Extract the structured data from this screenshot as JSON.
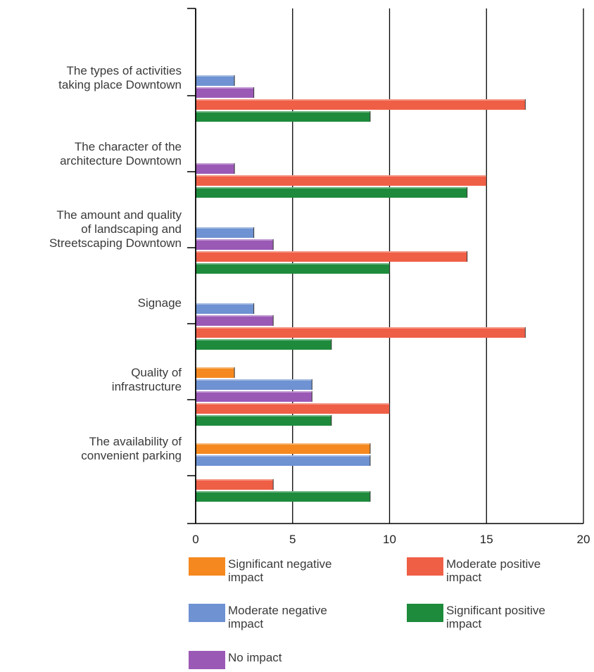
{
  "chart_data": {
    "type": "bar",
    "orientation": "horizontal",
    "title": "",
    "xlabel": "",
    "ylabel": "",
    "xlim": [
      0,
      20
    ],
    "x_ticks": [
      "0",
      "5",
      "10",
      "15",
      "20"
    ],
    "grid": "vertical lines at major ticks",
    "legend_position": "bottom",
    "categories": [
      [
        "The types of activities",
        "taking place Downtown"
      ],
      [
        "The character of the",
        "architecture Downtown"
      ],
      [
        "The amount and quality",
        "of landscaping and",
        "Streetscaping Downtown"
      ],
      [
        "Signage"
      ],
      [
        "Quality of",
        "infrastructure"
      ],
      [
        "The  availability of",
        "convenient parking"
      ]
    ],
    "series": [
      {
        "name": "Significant negative impact",
        "color": "#f5891f",
        "values": [
          0,
          0,
          0,
          0,
          2,
          9
        ]
      },
      {
        "name": "Moderate negative impact",
        "color": "#6e92d2",
        "values": [
          2,
          0,
          3,
          3,
          6,
          9
        ]
      },
      {
        "name": "No impact",
        "color": "#9b59b6",
        "values": [
          3,
          2,
          4,
          4,
          6,
          0
        ]
      },
      {
        "name": "Moderate positive impact",
        "color": "#ef5f46",
        "values": [
          17,
          15,
          14,
          17,
          10,
          4
        ]
      },
      {
        "name": "Significant positive impact",
        "color": "#1e8b3c",
        "values": [
          9,
          14,
          10,
          7,
          7,
          9
        ]
      }
    ]
  },
  "legend": {
    "items": [
      {
        "label_line1": "Significant negative",
        "label_line2": "impact",
        "color": "#f5891f"
      },
      {
        "label_line1": "Moderate positive",
        "label_line2": "impact",
        "color": "#ef5f46"
      },
      {
        "label_line1": "Moderate negative",
        "label_line2": "impact",
        "color": "#6e92d2"
      },
      {
        "label_line1": "Significant positive",
        "label_line2": "impact",
        "color": "#1e8b3c"
      },
      {
        "label_line1": "No impact",
        "label_line2": "",
        "color": "#9b59b6"
      }
    ]
  }
}
